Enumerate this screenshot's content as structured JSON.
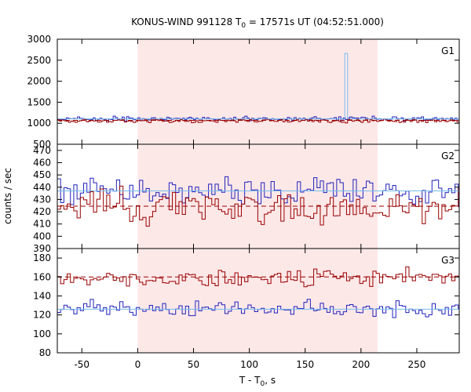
{
  "chart_data": {
    "type": "line",
    "title": "KONUS-WIND 991128 T",
    "title_sub": "0",
    "title_rest": " = 17571s UT (04:52:51.000)",
    "xlabel": "T - T",
    "xlabel_sub": "0",
    "xlabel_rest": ", s",
    "ylabel": "counts / sec",
    "xlim": [
      -72,
      288
    ],
    "xticks": [
      -50,
      0,
      50,
      100,
      150,
      200,
      250
    ],
    "shaded_interval": [
      0,
      215
    ],
    "colors": {
      "shade": "#fde8e8",
      "dark_red": "#990000",
      "blue": "#2222bb",
      "light_blue": "#77bbee"
    },
    "panels": [
      {
        "label": "G1",
        "ylim": [
          500,
          3000
        ],
        "yticks": [
          500,
          1000,
          1500,
          2000,
          2500,
          3000
        ],
        "series": [
          {
            "color": "blue",
            "style": "step",
            "seed": 3,
            "mean": 1110,
            "amp": 45,
            "x0": -72,
            "x1": 288,
            "step": 2
          },
          {
            "color": "dark_red",
            "style": "step",
            "seed": 7,
            "mean": 1055,
            "amp": 40,
            "x0": -72,
            "x1": 288,
            "step": 2
          },
          {
            "color": "light_blue",
            "style": "flat_spike",
            "value": 1105,
            "spike_x": [
              185.5,
              188
            ],
            "spike_value": 2660,
            "x0": -72,
            "x1": 288
          },
          {
            "color": "dark_red",
            "style": "dashed",
            "value": 1070,
            "x0": -72,
            "x1": 288
          }
        ]
      },
      {
        "label": "G2",
        "ylim": [
          390,
          475
        ],
        "yticks": [
          390,
          400,
          410,
          420,
          430,
          440,
          450,
          460,
          470
        ],
        "series": [
          {
            "color": "blue",
            "style": "step",
            "seed": 11,
            "mean": 436,
            "amp": 11,
            "x0": -72,
            "x1": 288,
            "step": 2.944
          },
          {
            "color": "dark_red",
            "style": "step",
            "seed": 19,
            "mean": 424,
            "amp": 12,
            "x0": -72,
            "x1": 288,
            "step": 2.944
          },
          {
            "color": "light_blue",
            "style": "flat",
            "value": 437,
            "x0": -72,
            "x1": 288
          },
          {
            "color": "dark_red",
            "style": "dashed",
            "value": 424.5,
            "x0": -72,
            "x1": 288
          }
        ]
      },
      {
        "label": "G3",
        "ylim": [
          80,
          190
        ],
        "yticks": [
          80,
          100,
          120,
          140,
          160,
          180
        ],
        "series": [
          {
            "color": "dark_red",
            "style": "step",
            "seed": 23,
            "mean": 159,
            "amp": 8,
            "x0": -72,
            "x1": 288,
            "step": 2.944
          },
          {
            "color": "blue",
            "style": "step",
            "seed": 29,
            "mean": 126,
            "amp": 7,
            "x0": -72,
            "x1": 288,
            "step": 2.944
          },
          {
            "color": "light_blue",
            "style": "flat",
            "value": 126,
            "x0": -72,
            "x1": 288
          },
          {
            "color": "dark_red",
            "style": "dashed",
            "value": 160,
            "x0": -72,
            "x1": 288
          }
        ]
      }
    ]
  }
}
